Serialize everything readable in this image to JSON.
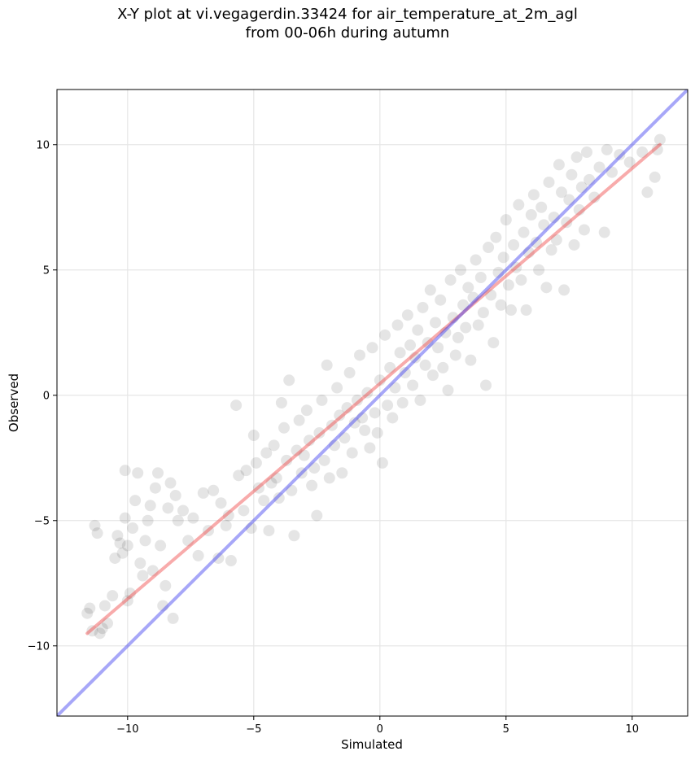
{
  "chart_data": {
    "type": "scatter",
    "title": "X-Y plot at vi.vegagerdin.33424 for air_temperature_at_2m_agl",
    "subtitle": "from 00-06h during autumn",
    "xlabel": "Simulated",
    "ylabel": "Observed",
    "xlim": [
      -12.8,
      12.2
    ],
    "ylim": [
      -12.8,
      12.2
    ],
    "xticks": [
      -10,
      -5,
      0,
      5,
      10
    ],
    "yticks": [
      -10,
      -5,
      0,
      5,
      10
    ],
    "xtick_labels": [
      "−10",
      "−5",
      "0",
      "5",
      "10"
    ],
    "ytick_labels": [
      "−10",
      "−5",
      "0",
      "5",
      "10"
    ],
    "grid": true,
    "point_color": "#000000",
    "point_alpha": 0.1,
    "series": [
      {
        "points": [
          [
            -11.6,
            -8.7
          ],
          [
            -11.5,
            -8.5
          ],
          [
            -11.4,
            -9.4
          ],
          [
            -11.3,
            -5.2
          ],
          [
            -11.2,
            -5.5
          ],
          [
            -11.1,
            -9.5
          ],
          [
            -11.0,
            -9.3
          ],
          [
            -10.9,
            -8.4
          ],
          [
            -10.8,
            -9.1
          ],
          [
            -10.6,
            -8.0
          ],
          [
            -10.5,
            -6.5
          ],
          [
            -10.4,
            -5.6
          ],
          [
            -10.3,
            -5.9
          ],
          [
            -10.2,
            -6.3
          ],
          [
            -10.1,
            -4.9
          ],
          [
            -10.1,
            -3.0
          ],
          [
            -10.0,
            -8.2
          ],
          [
            -10.0,
            -6.0
          ],
          [
            -9.9,
            -7.9
          ],
          [
            -9.8,
            -5.3
          ],
          [
            -9.7,
            -4.2
          ],
          [
            -9.6,
            -3.1
          ],
          [
            -9.5,
            -6.7
          ],
          [
            -9.4,
            -7.2
          ],
          [
            -9.3,
            -5.8
          ],
          [
            -9.2,
            -5.0
          ],
          [
            -9.1,
            -4.4
          ],
          [
            -9.0,
            -7.0
          ],
          [
            -8.9,
            -3.7
          ],
          [
            -8.8,
            -3.1
          ],
          [
            -8.7,
            -6.0
          ],
          [
            -8.6,
            -8.4
          ],
          [
            -8.5,
            -7.6
          ],
          [
            -8.4,
            -4.5
          ],
          [
            -8.3,
            -3.5
          ],
          [
            -8.2,
            -8.9
          ],
          [
            -8.1,
            -4.0
          ],
          [
            -8.0,
            -5.0
          ],
          [
            -7.8,
            -4.6
          ],
          [
            -7.6,
            -5.8
          ],
          [
            -7.4,
            -4.9
          ],
          [
            -7.2,
            -6.4
          ],
          [
            -7.0,
            -3.9
          ],
          [
            -6.8,
            -5.4
          ],
          [
            -6.6,
            -3.8
          ],
          [
            -6.4,
            -6.5
          ],
          [
            -6.3,
            -4.3
          ],
          [
            -6.1,
            -5.2
          ],
          [
            -6.0,
            -4.8
          ],
          [
            -5.9,
            -6.6
          ],
          [
            -5.7,
            -0.4
          ],
          [
            -5.6,
            -3.2
          ],
          [
            -5.4,
            -4.6
          ],
          [
            -5.3,
            -3.0
          ],
          [
            -5.1,
            -5.3
          ],
          [
            -5.0,
            -1.6
          ],
          [
            -4.9,
            -2.7
          ],
          [
            -4.8,
            -3.7
          ],
          [
            -4.6,
            -4.2
          ],
          [
            -4.5,
            -2.3
          ],
          [
            -4.4,
            -5.4
          ],
          [
            -4.3,
            -3.5
          ],
          [
            -4.2,
            -2.0
          ],
          [
            -4.1,
            -3.3
          ],
          [
            -4.0,
            -4.1
          ],
          [
            -3.9,
            -0.3
          ],
          [
            -3.8,
            -1.3
          ],
          [
            -3.7,
            -2.6
          ],
          [
            -3.6,
            0.6
          ],
          [
            -3.5,
            -3.8
          ],
          [
            -3.4,
            -5.6
          ],
          [
            -3.3,
            -2.2
          ],
          [
            -3.2,
            -1.0
          ],
          [
            -3.1,
            -3.1
          ],
          [
            -3.0,
            -2.4
          ],
          [
            -2.9,
            -0.6
          ],
          [
            -2.8,
            -1.8
          ],
          [
            -2.7,
            -3.6
          ],
          [
            -2.6,
            -2.9
          ],
          [
            -2.5,
            -4.8
          ],
          [
            -2.4,
            -1.5
          ],
          [
            -2.3,
            -0.2
          ],
          [
            -2.2,
            -2.6
          ],
          [
            -2.1,
            1.2
          ],
          [
            -2.0,
            -3.3
          ],
          [
            -1.9,
            -1.2
          ],
          [
            -1.8,
            -2.0
          ],
          [
            -1.7,
            0.3
          ],
          [
            -1.6,
            -0.8
          ],
          [
            -1.5,
            -3.1
          ],
          [
            -1.4,
            -1.7
          ],
          [
            -1.3,
            -0.5
          ],
          [
            -1.2,
            0.9
          ],
          [
            -1.1,
            -2.3
          ],
          [
            -1.0,
            -1.1
          ],
          [
            -0.9,
            -0.2
          ],
          [
            -0.8,
            1.6
          ],
          [
            -0.7,
            -0.9
          ],
          [
            -0.6,
            -1.4
          ],
          [
            -0.5,
            0.1
          ],
          [
            -0.4,
            -2.1
          ],
          [
            -0.3,
            1.9
          ],
          [
            -0.2,
            -0.7
          ],
          [
            -0.1,
            -1.5
          ],
          [
            0.0,
            0.6
          ],
          [
            0.1,
            -2.7
          ],
          [
            0.2,
            2.4
          ],
          [
            0.3,
            -0.4
          ],
          [
            0.4,
            1.1
          ],
          [
            0.5,
            -0.9
          ],
          [
            0.6,
            0.3
          ],
          [
            0.7,
            2.8
          ],
          [
            0.8,
            1.7
          ],
          [
            0.9,
            -0.3
          ],
          [
            1.0,
            0.9
          ],
          [
            1.1,
            3.2
          ],
          [
            1.2,
            2.0
          ],
          [
            1.3,
            0.4
          ],
          [
            1.4,
            1.5
          ],
          [
            1.5,
            2.6
          ],
          [
            1.6,
            -0.2
          ],
          [
            1.7,
            3.5
          ],
          [
            1.8,
            1.2
          ],
          [
            1.9,
            2.1
          ],
          [
            2.0,
            4.2
          ],
          [
            2.1,
            0.8
          ],
          [
            2.2,
            2.9
          ],
          [
            2.3,
            1.9
          ],
          [
            2.4,
            3.8
          ],
          [
            2.5,
            1.1
          ],
          [
            2.6,
            2.5
          ],
          [
            2.7,
            0.2
          ],
          [
            2.8,
            4.6
          ],
          [
            2.9,
            3.1
          ],
          [
            3.0,
            1.6
          ],
          [
            3.1,
            2.3
          ],
          [
            3.2,
            5.0
          ],
          [
            3.3,
            3.6
          ],
          [
            3.4,
            2.7
          ],
          [
            3.5,
            4.3
          ],
          [
            3.6,
            1.4
          ],
          [
            3.7,
            3.9
          ],
          [
            3.8,
            5.4
          ],
          [
            3.9,
            2.8
          ],
          [
            4.0,
            4.7
          ],
          [
            4.1,
            3.3
          ],
          [
            4.2,
            0.4
          ],
          [
            4.3,
            5.9
          ],
          [
            4.4,
            4.0
          ],
          [
            4.5,
            2.1
          ],
          [
            4.6,
            6.3
          ],
          [
            4.7,
            4.9
          ],
          [
            4.8,
            3.6
          ],
          [
            4.9,
            5.5
          ],
          [
            5.0,
            7.0
          ],
          [
            5.1,
            4.4
          ],
          [
            5.2,
            3.4
          ],
          [
            5.3,
            6.0
          ],
          [
            5.4,
            5.1
          ],
          [
            5.5,
            7.6
          ],
          [
            5.6,
            4.6
          ],
          [
            5.7,
            6.5
          ],
          [
            5.8,
            3.4
          ],
          [
            5.9,
            5.7
          ],
          [
            6.0,
            7.2
          ],
          [
            6.1,
            8.0
          ],
          [
            6.2,
            6.1
          ],
          [
            6.3,
            5.0
          ],
          [
            6.4,
            7.5
          ],
          [
            6.5,
            6.8
          ],
          [
            6.6,
            4.3
          ],
          [
            6.7,
            8.5
          ],
          [
            6.8,
            5.8
          ],
          [
            6.9,
            7.1
          ],
          [
            7.0,
            6.2
          ],
          [
            7.1,
            9.2
          ],
          [
            7.2,
            8.1
          ],
          [
            7.3,
            4.2
          ],
          [
            7.4,
            6.9
          ],
          [
            7.5,
            7.8
          ],
          [
            7.6,
            8.8
          ],
          [
            7.7,
            6.0
          ],
          [
            7.8,
            9.5
          ],
          [
            7.9,
            7.4
          ],
          [
            8.0,
            8.3
          ],
          [
            8.1,
            6.6
          ],
          [
            8.2,
            9.7
          ],
          [
            8.3,
            8.6
          ],
          [
            8.5,
            7.9
          ],
          [
            8.7,
            9.1
          ],
          [
            8.9,
            6.5
          ],
          [
            9.0,
            9.8
          ],
          [
            9.2,
            8.9
          ],
          [
            9.5,
            9.6
          ],
          [
            9.9,
            9.3
          ],
          [
            10.4,
            9.7
          ],
          [
            10.6,
            8.1
          ],
          [
            10.9,
            8.7
          ],
          [
            11.1,
            10.2
          ],
          [
            11.0,
            9.8
          ]
        ]
      }
    ],
    "lines": [
      {
        "name": "",
        "color": "#ef4444",
        "alpha": 0.45,
        "x": [
          -11.6,
          11.1
        ],
        "y": [
          -9.5,
          10.0
        ]
      },
      {
        "name": "",
        "color": "#3b3bef",
        "alpha": 0.45,
        "x": [
          -12.8,
          12.2
        ],
        "y": [
          -12.8,
          12.2
        ]
      }
    ]
  }
}
